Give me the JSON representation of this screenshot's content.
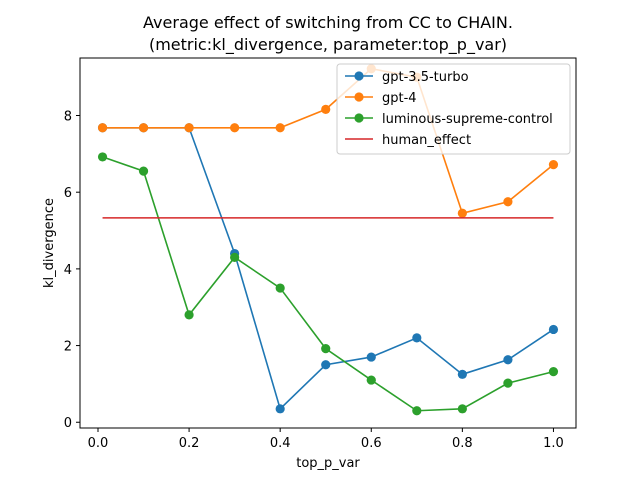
{
  "chart_data": {
    "type": "line",
    "title_line1": "Average effect of switching from CC to CHAIN.",
    "title_line2": "(metric:kl_divergence, parameter:top_p_var)",
    "xlabel": "top_p_var",
    "ylabel": "kl_divergence",
    "xlim": [
      -0.0395,
      1.0495
    ],
    "ylim": [
      -0.15,
      9.5
    ],
    "xticks": [
      0.0,
      0.2,
      0.4,
      0.6,
      0.8,
      1.0
    ],
    "xtick_labels": [
      "0.0",
      "0.2",
      "0.4",
      "0.6",
      "0.8",
      "1.0"
    ],
    "yticks": [
      0,
      2,
      4,
      6,
      8
    ],
    "ytick_labels": [
      "0",
      "2",
      "4",
      "6",
      "8"
    ],
    "grid": false,
    "legend_position": "top-right",
    "x": [
      0.01,
      0.1,
      0.2,
      0.3,
      0.4,
      0.5,
      0.6,
      0.7,
      0.8,
      0.9,
      1.0
    ],
    "series": [
      {
        "name": "gpt-3.5-turbo",
        "color": "#1f77b4",
        "marker": true,
        "values": [
          7.68,
          7.68,
          7.68,
          4.4,
          0.35,
          1.5,
          1.7,
          2.2,
          1.25,
          1.63,
          2.42
        ]
      },
      {
        "name": "gpt-4",
        "color": "#ff7f0e",
        "marker": true,
        "values": [
          7.68,
          7.68,
          7.68,
          7.68,
          7.68,
          8.16,
          9.22,
          9.0,
          5.45,
          5.75,
          6.72
        ]
      },
      {
        "name": "luminous-supreme-control",
        "color": "#2ca02c",
        "marker": true,
        "values": [
          6.92,
          6.55,
          2.8,
          4.3,
          3.5,
          1.92,
          1.1,
          0.3,
          0.35,
          1.02,
          1.32
        ]
      },
      {
        "name": "human_effect",
        "color": "#d62728",
        "marker": false,
        "values": [
          5.33,
          5.33,
          5.33,
          5.33,
          5.33,
          5.33,
          5.33,
          5.33,
          5.33,
          5.33,
          5.33
        ]
      }
    ]
  }
}
